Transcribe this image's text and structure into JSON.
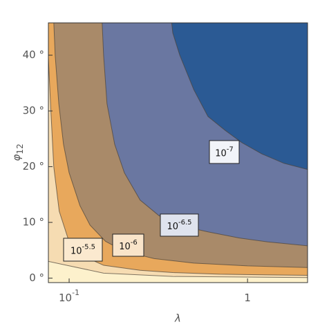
{
  "chart_data": {
    "type": "contour",
    "x_label": "λ",
    "y_label": "φ",
    "y_label_subscript": "12",
    "xscale": "log",
    "xlim": [
      0.0765,
      2.17
    ],
    "ylim": [
      -0.8,
      45.8
    ],
    "xticks": [
      {
        "value": 0.1,
        "label": "10",
        "exponent": -1
      },
      {
        "value": 1,
        "label": "1"
      }
    ],
    "yticks": [
      {
        "value": 0,
        "label": "0 °"
      },
      {
        "value": 10,
        "label": "10 °"
      },
      {
        "value": 20,
        "label": "20 °"
      },
      {
        "value": 30,
        "label": "30 °"
      },
      {
        "value": 40,
        "label": "40 °"
      }
    ],
    "background": "#fdf1cc",
    "series": [
      {
        "color": "#f6dcb2",
        "x": [
          0.0765,
          0.156,
          0.381,
          2.17
        ],
        "y": [
          3.0,
          0.9,
          0.3,
          0.1
        ]
      },
      {
        "label": "10",
        "exponent": -5.5,
        "color": "#e8a85c",
        "x": [
          0.0765,
          0.079,
          0.082,
          0.088,
          0.1,
          0.125,
          0.156,
          0.25,
          0.381,
          0.7,
          2.17
        ],
        "y": [
          39.5,
          30,
          20,
          12,
          6.5,
          3.7,
          2.3,
          1.4,
          1.0,
          0.7,
          0.5
        ]
      },
      {
        "label": "10",
        "exponent": -6,
        "color": "#a98a69",
        "x": [
          0.082,
          0.0835,
          0.0875,
          0.093,
          0.1,
          0.115,
          0.131,
          0.16,
          0.204,
          0.3,
          0.5,
          1,
          2.17
        ],
        "y": [
          46,
          40,
          31.3,
          24,
          18.9,
          13,
          9.5,
          6.6,
          4.8,
          3.5,
          2.7,
          2.2,
          1.9
        ]
      },
      {
        "label": "10",
        "exponent": -6.5,
        "color": "#6a77a1",
        "x": [
          0.153,
          0.156,
          0.163,
          0.18,
          0.204,
          0.25,
          0.319,
          0.45,
          0.6,
          0.9,
          1.3,
          2.17
        ],
        "y": [
          46,
          40,
          31.3,
          24,
          18.9,
          14,
          11.2,
          9.2,
          8.3,
          7.2,
          6.5,
          5.8
        ]
      },
      {
        "label": "10",
        "exponent": -7,
        "color": "#2b5a94",
        "x": [
          0.375,
          0.381,
          0.417,
          0.5,
          0.6,
          0.75,
          0.93,
          1.2,
          1.6,
          2.17
        ],
        "y": [
          46,
          44,
          40,
          33.8,
          29,
          26.5,
          24.3,
          22.3,
          20.6,
          19.5
        ]
      }
    ]
  }
}
